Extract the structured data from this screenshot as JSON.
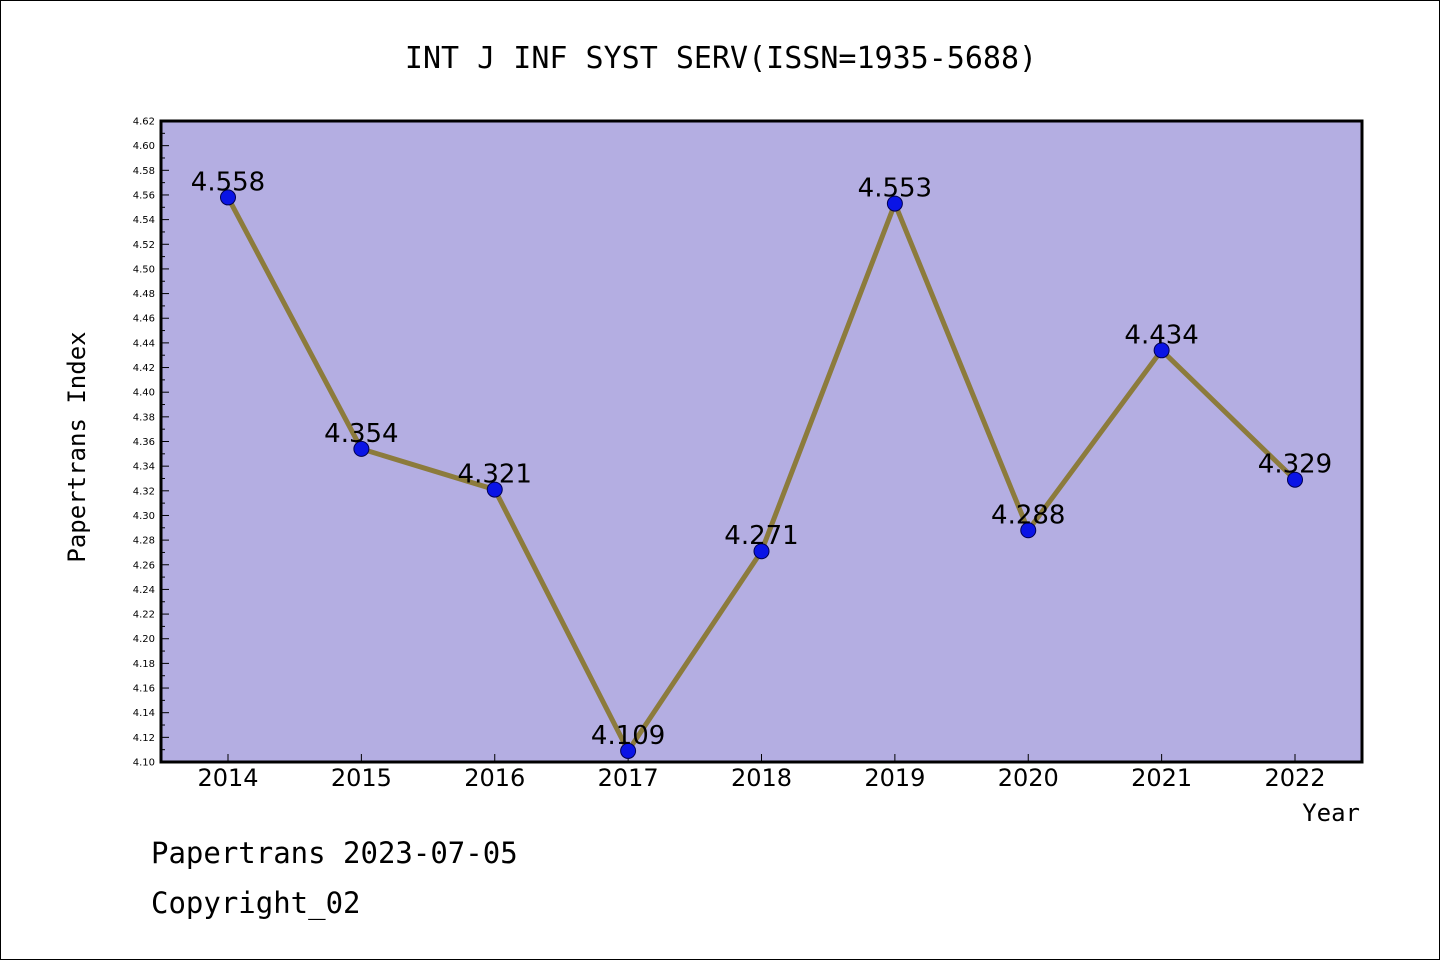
{
  "chart_data": {
    "type": "line",
    "title": "INT J INF SYST SERV(ISSN=1935-5688)",
    "xlabel": "Year",
    "ylabel": "Papertrans Index",
    "categories": [
      "2014",
      "2015",
      "2016",
      "2017",
      "2018",
      "2019",
      "2020",
      "2021",
      "2022"
    ],
    "series": [
      {
        "values": [
          4.558,
          4.354,
          4.321,
          4.109,
          4.271,
          4.553,
          4.288,
          4.434,
          4.329
        ],
        "labels": [
          "4.558",
          "4.354",
          "4.321",
          "4.109",
          "4.271",
          "4.553",
          "4.288",
          "4.434",
          "4.329"
        ]
      }
    ],
    "ylim": [
      4.1,
      4.62
    ],
    "ytick_step": 0.02,
    "yticks": [
      "4.10",
      "4.12",
      "4.14",
      "4.16",
      "4.18",
      "4.20",
      "4.22",
      "4.24",
      "4.26",
      "4.28",
      "4.30",
      "4.32",
      "4.34",
      "4.36",
      "4.38",
      "4.40",
      "4.42",
      "4.44",
      "4.46",
      "4.48",
      "4.50",
      "4.52",
      "4.54",
      "4.56",
      "4.58",
      "4.60",
      "4.62"
    ],
    "grid": false,
    "colors": {
      "plot_background": "#b4aee2",
      "line": "#8c7b3c",
      "marker": "#0a14e6",
      "marker_edge": "#000050"
    }
  },
  "footer": {
    "line1": "Papertrans 2023-07-05",
    "line2": "Copyright_02"
  }
}
